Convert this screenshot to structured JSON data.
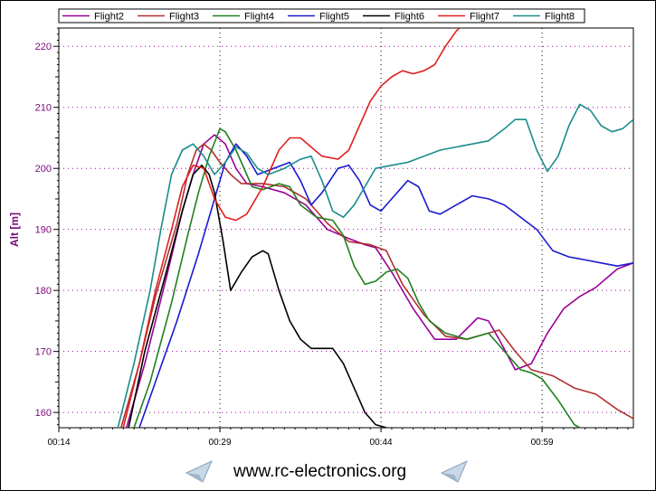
{
  "chart_data": {
    "type": "line",
    "xlabel": "",
    "ylabel": "Alt [m]",
    "xlim": [
      14,
      67.5
    ],
    "ylim": [
      157.5,
      223
    ],
    "x_ticks": [
      {
        "value": 14,
        "label": "00:14"
      },
      {
        "value": 29,
        "label": "00:29"
      },
      {
        "value": 44,
        "label": "00:44"
      },
      {
        "value": 59,
        "label": "00:59"
      }
    ],
    "y_ticks": [
      160,
      170,
      180,
      190,
      200,
      210,
      220
    ],
    "grid": true,
    "legend_position": "top",
    "series": [
      {
        "name": "Flight2",
        "color": "#990099",
        "points": [
          [
            20.3,
            157.5
          ],
          [
            22,
            168
          ],
          [
            24,
            182
          ],
          [
            25.5,
            193
          ],
          [
            26.5,
            199
          ],
          [
            27.5,
            204
          ],
          [
            28.5,
            205.5
          ],
          [
            29.5,
            204
          ],
          [
            30.5,
            200
          ],
          [
            31.5,
            197.5
          ],
          [
            33,
            197
          ],
          [
            35,
            196
          ],
          [
            37,
            194
          ],
          [
            39,
            190
          ],
          [
            41,
            188.5
          ],
          [
            42.5,
            187.5
          ],
          [
            43.5,
            187
          ],
          [
            45,
            183
          ],
          [
            47,
            177
          ],
          [
            49,
            172
          ],
          [
            51,
            172
          ],
          [
            53,
            175.5
          ],
          [
            54,
            175
          ],
          [
            55,
            172
          ],
          [
            56.5,
            167
          ],
          [
            58,
            168
          ],
          [
            59.5,
            173
          ],
          [
            61,
            177
          ],
          [
            62.5,
            179
          ],
          [
            64,
            180.5
          ],
          [
            66,
            183.5
          ],
          [
            67.5,
            184.5
          ]
        ]
      },
      {
        "name": "Flight3",
        "color": "#b03030",
        "points": [
          [
            19.8,
            157.5
          ],
          [
            21.5,
            168
          ],
          [
            23,
            179
          ],
          [
            25,
            191
          ],
          [
            26,
            199
          ],
          [
            26.8,
            203
          ],
          [
            27.5,
            204
          ],
          [
            28.2,
            203
          ],
          [
            29,
            201
          ],
          [
            30,
            199
          ],
          [
            31,
            197.5
          ],
          [
            33,
            197.5
          ],
          [
            35,
            197
          ],
          [
            37,
            195
          ],
          [
            39,
            191
          ],
          [
            41,
            188
          ],
          [
            43,
            187.5
          ],
          [
            44.5,
            186.5
          ],
          [
            46,
            181
          ],
          [
            48,
            176
          ],
          [
            50,
            172.5
          ],
          [
            52,
            172
          ],
          [
            54,
            173
          ],
          [
            55,
            173.5
          ],
          [
            56.5,
            170
          ],
          [
            58,
            167
          ],
          [
            60,
            166
          ],
          [
            62,
            164
          ],
          [
            64,
            163
          ],
          [
            66,
            160.5
          ],
          [
            67.5,
            159
          ]
        ]
      },
      {
        "name": "Flight4",
        "color": "#208020",
        "points": [
          [
            21,
            157.5
          ],
          [
            22.5,
            165
          ],
          [
            24.5,
            178
          ],
          [
            26,
            189
          ],
          [
            27,
            196
          ],
          [
            28,
            202
          ],
          [
            29,
            206.5
          ],
          [
            29.5,
            206
          ],
          [
            30.5,
            203
          ],
          [
            32,
            197
          ],
          [
            33,
            196.5
          ],
          [
            34.5,
            197.5
          ],
          [
            35.5,
            197
          ],
          [
            36.5,
            194
          ],
          [
            38,
            192
          ],
          [
            39.5,
            191.5
          ],
          [
            40.5,
            189
          ],
          [
            41.5,
            184
          ],
          [
            42.5,
            181
          ],
          [
            43.5,
            181.5
          ],
          [
            44.5,
            183
          ],
          [
            45.5,
            183.5
          ],
          [
            46.5,
            182
          ],
          [
            47.5,
            178
          ],
          [
            48.5,
            175
          ],
          [
            50,
            173
          ],
          [
            52,
            172
          ],
          [
            54,
            173
          ],
          [
            55.5,
            170
          ],
          [
            57,
            167
          ],
          [
            58,
            166.5
          ],
          [
            59,
            165.5
          ],
          [
            60.5,
            162
          ],
          [
            62,
            158
          ],
          [
            62.5,
            157.5
          ]
        ]
      },
      {
        "name": "Flight5",
        "color": "#1a1ad0",
        "points": [
          [
            21.5,
            157.5
          ],
          [
            23,
            165
          ],
          [
            25,
            175
          ],
          [
            27,
            186
          ],
          [
            28.5,
            195
          ],
          [
            29.5,
            201
          ],
          [
            30.5,
            204
          ],
          [
            31.5,
            202
          ],
          [
            32.5,
            199
          ],
          [
            34,
            200
          ],
          [
            35.5,
            201
          ],
          [
            36.5,
            198
          ],
          [
            37.5,
            194
          ],
          [
            38.5,
            196
          ],
          [
            40,
            200
          ],
          [
            41,
            200.5
          ],
          [
            42,
            198
          ],
          [
            43,
            194
          ],
          [
            44,
            193
          ],
          [
            45,
            195
          ],
          [
            46.5,
            198
          ],
          [
            47.5,
            197
          ],
          [
            48.5,
            193
          ],
          [
            49.5,
            192.5
          ],
          [
            51,
            194
          ],
          [
            52.5,
            195.5
          ],
          [
            54,
            195
          ],
          [
            55.5,
            194
          ],
          [
            57,
            192
          ],
          [
            58.5,
            190
          ],
          [
            60,
            186.5
          ],
          [
            61.5,
            185.5
          ],
          [
            63,
            185
          ],
          [
            64.5,
            184.5
          ],
          [
            66,
            184
          ],
          [
            67.5,
            184.5
          ]
        ]
      },
      {
        "name": "Flight6",
        "color": "#000000",
        "points": [
          [
            20.5,
            157.5
          ],
          [
            22,
            170
          ],
          [
            24,
            183
          ],
          [
            25.5,
            193
          ],
          [
            26.5,
            199
          ],
          [
            27.3,
            200.5
          ],
          [
            28,
            199
          ],
          [
            28.5,
            196
          ],
          [
            29.3,
            188
          ],
          [
            30,
            180
          ],
          [
            31,
            183
          ],
          [
            32,
            185.5
          ],
          [
            33,
            186.5
          ],
          [
            33.5,
            186
          ],
          [
            34.5,
            180
          ],
          [
            35.5,
            175
          ],
          [
            36.5,
            172
          ],
          [
            37.5,
            170.5
          ],
          [
            38.5,
            170.5
          ],
          [
            39.5,
            170.5
          ],
          [
            40.5,
            168
          ],
          [
            41.5,
            164
          ],
          [
            42.5,
            160
          ],
          [
            43.5,
            158
          ],
          [
            44.5,
            157.5
          ]
        ]
      },
      {
        "name": "Flight7",
        "color": "#e02020",
        "points": [
          [
            20,
            157.5
          ],
          [
            21.5,
            168
          ],
          [
            23,
            180
          ],
          [
            24.5,
            190
          ],
          [
            25.5,
            197
          ],
          [
            26.5,
            200.5
          ],
          [
            27.5,
            200
          ],
          [
            28.5,
            195
          ],
          [
            29.5,
            192
          ],
          [
            30.5,
            191.5
          ],
          [
            31.5,
            192.5
          ],
          [
            33,
            197
          ],
          [
            34.5,
            203
          ],
          [
            35.5,
            205
          ],
          [
            36.5,
            205
          ],
          [
            37.5,
            203.5
          ],
          [
            38.5,
            202
          ],
          [
            40,
            201.5
          ],
          [
            41,
            203
          ],
          [
            42,
            207
          ],
          [
            43,
            211
          ],
          [
            44,
            213.5
          ],
          [
            45,
            215
          ],
          [
            46,
            216
          ],
          [
            47,
            215.5
          ],
          [
            48,
            216
          ],
          [
            49,
            217
          ],
          [
            50,
            220
          ],
          [
            51,
            222.5
          ],
          [
            51.3,
            223
          ]
        ]
      },
      {
        "name": "Flight8",
        "color": "#1a8c8c",
        "points": [
          [
            19.5,
            157.5
          ],
          [
            21,
            168
          ],
          [
            22.5,
            180
          ],
          [
            23.5,
            190
          ],
          [
            24.5,
            199
          ],
          [
            25.5,
            203
          ],
          [
            26.5,
            204
          ],
          [
            27.5,
            202
          ],
          [
            28.5,
            199
          ],
          [
            29.5,
            201
          ],
          [
            30.5,
            203.5
          ],
          [
            31.5,
            202.5
          ],
          [
            32.5,
            200
          ],
          [
            33.5,
            199
          ],
          [
            35,
            200
          ],
          [
            36.5,
            201.5
          ],
          [
            37.5,
            202
          ],
          [
            38.5,
            198
          ],
          [
            39.5,
            193
          ],
          [
            40.5,
            192
          ],
          [
            41.5,
            194
          ],
          [
            42.5,
            197
          ],
          [
            43.5,
            200
          ],
          [
            45,
            200.5
          ],
          [
            46.5,
            201
          ],
          [
            48,
            202
          ],
          [
            49.5,
            203
          ],
          [
            51,
            203.5
          ],
          [
            52.5,
            204
          ],
          [
            54,
            204.5
          ],
          [
            55.5,
            206.5
          ],
          [
            56.5,
            208
          ],
          [
            57.5,
            208
          ],
          [
            58.5,
            203
          ],
          [
            59.5,
            199.5
          ],
          [
            60.5,
            202
          ],
          [
            61.5,
            207
          ],
          [
            62.5,
            210.5
          ],
          [
            63.5,
            209.5
          ],
          [
            64.5,
            207
          ],
          [
            65.5,
            206
          ],
          [
            66.5,
            206.5
          ],
          [
            67.5,
            208
          ]
        ]
      }
    ]
  },
  "footer": {
    "site_label": "www.rc-electronics.org"
  }
}
